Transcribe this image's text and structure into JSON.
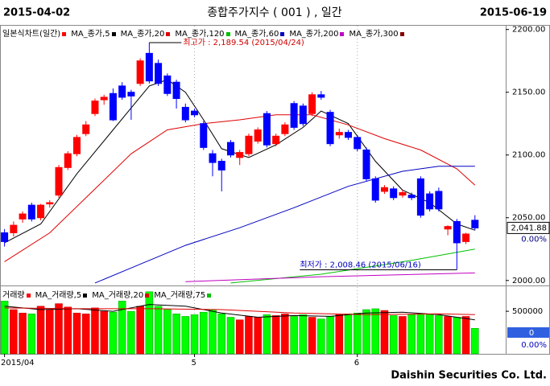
{
  "header": {
    "start_date": "2015-04-02",
    "title": "종합주가지수 ( 001 ) , 일간",
    "end_date": "2015-06-19"
  },
  "footer": "Daishin Securities Co. Ltd.",
  "chart_data": [
    {
      "type": "candlestick",
      "legend_title": "일본식차트(일간)",
      "legend_color": "#ff0000",
      "up_color": "#ff0000",
      "down_color": "#0000ff",
      "open": [
        2038,
        2038,
        2049,
        2060,
        2050,
        2061,
        2068,
        2090,
        2101,
        2117,
        2133,
        2144,
        2149,
        2155,
        2150,
        2157,
        2181,
        2173,
        2163,
        2158,
        2138,
        2135,
        2125,
        2101,
        2095,
        2110,
        2098,
        2101,
        2111,
        2133,
        2109,
        2117,
        2141,
        2139,
        2133,
        2148,
        2134,
        2116,
        2118,
        2114,
        2104,
        2081,
        2071,
        2073,
        2068,
        2068,
        2081,
        2069,
        2071,
        2041,
        2047,
        2031,
        2048
      ],
      "high": [
        2041,
        2047,
        2055,
        2062,
        2061,
        2064,
        2092,
        2103,
        2116,
        2127,
        2145,
        2148,
        2153,
        2158,
        2152,
        2177,
        2189.54,
        2176,
        2165,
        2160,
        2141,
        2137,
        2127,
        2104,
        2097,
        2112,
        2104,
        2117,
        2122,
        2135,
        2117,
        2126,
        2143,
        2141,
        2150,
        2151,
        2136,
        2121,
        2120,
        2116,
        2106,
        2083,
        2076,
        2075,
        2072,
        2070,
        2083,
        2071,
        2074,
        2044,
        2049,
        2038,
        2052
      ],
      "low": [
        2027,
        2035,
        2046,
        2047,
        2048,
        2058,
        2066,
        2088,
        2099,
        2115,
        2131,
        2140,
        2127,
        2144,
        2128,
        2155,
        2157,
        2155,
        2147,
        2137,
        2126,
        2130,
        2104,
        2083,
        2071,
        2098,
        2092,
        2099,
        2109,
        2106,
        2107,
        2115,
        2120,
        2123,
        2131,
        2144,
        2107,
        2113,
        2112,
        2103,
        2079,
        2062,
        2069,
        2064,
        2066,
        2064,
        2050,
        2055,
        2055,
        2036,
        2008.46,
        2029,
        2040
      ],
      "close": [
        2031,
        2044,
        2053,
        2049,
        2060,
        2062,
        2090,
        2101,
        2114,
        2124,
        2143,
        2146,
        2128,
        2146,
        2147,
        2175,
        2159,
        2157,
        2149,
        2145,
        2128,
        2132,
        2106,
        2094,
        2088,
        2100,
        2102,
        2115,
        2120,
        2108,
        2115,
        2124,
        2122,
        2125,
        2148,
        2146,
        2109,
        2118,
        2114,
        2105,
        2081,
        2064,
        2074,
        2066,
        2070,
        2066,
        2052,
        2057,
        2057,
        2043,
        2030,
        2037,
        2041.88
      ],
      "series": [
        {
          "name": "MA_종가,5",
          "color": "#000000",
          "x": [
            0,
            4,
            8,
            12,
            16,
            18,
            20,
            22,
            24,
            27,
            30,
            33,
            35,
            38,
            41,
            44,
            47,
            50,
            52
          ],
          "values": [
            2030,
            2045,
            2085,
            2120,
            2155,
            2160,
            2150,
            2128,
            2105,
            2098,
            2108,
            2122,
            2135,
            2125,
            2095,
            2072,
            2062,
            2045,
            2040
          ]
        },
        {
          "name": "MA_종가,20",
          "color": "#e00000",
          "x": [
            0,
            5,
            10,
            14,
            18,
            22,
            26,
            30,
            34,
            38,
            42,
            46,
            50,
            52
          ],
          "values": [
            2015,
            2038,
            2073,
            2101,
            2120,
            2125,
            2128,
            2132,
            2132,
            2124,
            2113,
            2104,
            2089,
            2076
          ]
        },
        {
          "name": "MA_종가,120",
          "color": "#00c000",
          "x": [
            25,
            35,
            45,
            52
          ],
          "values": [
            1998,
            2005,
            2016,
            2025
          ]
        },
        {
          "name": "MA_종가,60",
          "color": "#0000c0",
          "x": [
            10,
            14,
            20,
            26,
            32,
            38,
            44,
            48,
            52
          ],
          "values": [
            1998,
            2010,
            2028,
            2042,
            2058,
            2075,
            2087,
            2091,
            2091
          ]
        },
        {
          "name": "MA_종가,200",
          "color": "#c000c0",
          "x": [
            20,
            35,
            52
          ],
          "values": [
            1999,
            2003,
            2006
          ]
        },
        {
          "name": "MA_종가,300",
          "color": "#800000",
          "x": [],
          "values": []
        }
      ],
      "xlim": [
        -0.5,
        55.4
      ],
      "ylim": [
        1996,
        2203
      ],
      "yticks": [
        {
          "value": 2000,
          "label": "2000.00"
        },
        {
          "value": 2050,
          "label": "2050.00"
        },
        {
          "value": 2100,
          "label": "2100.00"
        },
        {
          "value": 2150,
          "label": "2150.00"
        },
        {
          "value": 2200,
          "label": "2200.00"
        }
      ],
      "xticks": [
        {
          "value": 0,
          "label": "2015/04"
        },
        {
          "value": 21,
          "label": "5"
        },
        {
          "value": 39,
          "label": "6"
        }
      ],
      "xgrid": true,
      "annotations": {
        "max": "최고가 : 2,189.54 (2015/04/24)",
        "min": "최저가 : 2,008.46 (2015/06/16)"
      },
      "price_label": "2,041.88",
      "change_label": "0.00%"
    },
    {
      "type": "bar",
      "legend_title": "거래량",
      "legend_color": "#ff0000",
      "up_color": "#ff0000",
      "down_color": "#00ff00",
      "values": [
        620000,
        520000,
        480000,
        470000,
        560000,
        520000,
        590000,
        550000,
        480000,
        470000,
        540000,
        500000,
        490000,
        620000,
        500000,
        560000,
        730000,
        560000,
        520000,
        470000,
        440000,
        460000,
        490000,
        520000,
        470000,
        430000,
        400000,
        440000,
        430000,
        460000,
        450000,
        470000,
        440000,
        460000,
        430000,
        410000,
        440000,
        460000,
        470000,
        480000,
        520000,
        530000,
        510000,
        450000,
        440000,
        460000,
        470000,
        460000,
        450000,
        440000,
        430000,
        440000,
        300000
      ],
      "series": [
        {
          "name": "MA_거래량,5",
          "color": "#000000",
          "x": [
            0,
            4,
            8,
            12,
            16,
            20,
            24,
            28,
            32,
            36,
            40,
            44,
            48,
            52
          ],
          "values": [
            560000,
            520000,
            530000,
            500000,
            580000,
            560000,
            480000,
            430000,
            450000,
            440000,
            480000,
            490000,
            460000,
            400000
          ]
        },
        {
          "name": "MA_거래량,20",
          "color": "#e00000",
          "x": [
            0,
            8,
            16,
            24,
            32,
            40,
            48,
            52
          ],
          "values": [
            540000,
            530000,
            530000,
            520000,
            480000,
            460000,
            470000,
            460000
          ]
        },
        {
          "name": "MA_거래량,75",
          "color": "#00c000",
          "x": [],
          "values": []
        }
      ],
      "ylim": [
        0,
        775000
      ],
      "yticks": [
        500000
      ],
      "value_label": "0",
      "change_label": "0.00%"
    }
  ]
}
